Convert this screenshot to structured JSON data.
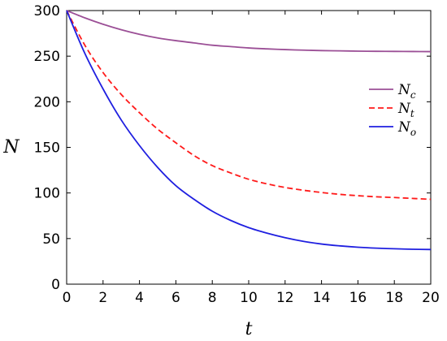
{
  "chart_data": {
    "type": "line",
    "xlabel": "t",
    "ylabel": "N",
    "xlim": [
      0,
      20
    ],
    "ylim": [
      0,
      300
    ],
    "xticks": [
      "0",
      "2",
      "4",
      "6",
      "8",
      "10",
      "12",
      "14",
      "16",
      "18",
      "20"
    ],
    "yticks": [
      "0",
      "50",
      "100",
      "150",
      "200",
      "250",
      "300"
    ],
    "grid": false,
    "legend_position": "right",
    "series": [
      {
        "name": "N",
        "subscript": "c",
        "color": "#9B4F96",
        "dash": "solid",
        "x": [
          0,
          1,
          2,
          3,
          4,
          5,
          6,
          7,
          8,
          9,
          10,
          11,
          12,
          13,
          14,
          15,
          16,
          17,
          18,
          19,
          20
        ],
        "values": [
          300,
          292,
          285,
          279,
          274,
          270,
          267,
          264.5,
          262,
          260.5,
          259,
          258,
          257.2,
          256.6,
          256.1,
          255.8,
          255.5,
          255.3,
          255.2,
          255.1,
          255
        ]
      },
      {
        "name": "N",
        "subscript": "t",
        "color": "#FF1A1A",
        "dash": "dashed",
        "x": [
          0,
          1,
          2,
          3,
          4,
          5,
          6,
          7,
          8,
          9,
          10,
          11,
          12,
          13,
          14,
          15,
          16,
          17,
          18,
          19,
          20
        ],
        "values": [
          300,
          262,
          232,
          208,
          188,
          170,
          155,
          141,
          130,
          122,
          115,
          110,
          106,
          103,
          100.5,
          98.5,
          97,
          95.8,
          95,
          94,
          93
        ]
      },
      {
        "name": "N",
        "subscript": "o",
        "color": "#1F1FE0",
        "dash": "solid",
        "x": [
          0,
          1,
          2,
          3,
          4,
          5,
          6,
          7,
          8,
          9,
          10,
          11,
          12,
          13,
          14,
          15,
          16,
          17,
          18,
          19,
          20
        ],
        "values": [
          300,
          253,
          214,
          180,
          152,
          128,
          108,
          93,
          80,
          70,
          62,
          56,
          51,
          47,
          44,
          42,
          40.5,
          39.5,
          38.8,
          38.3,
          38
        ]
      }
    ]
  }
}
